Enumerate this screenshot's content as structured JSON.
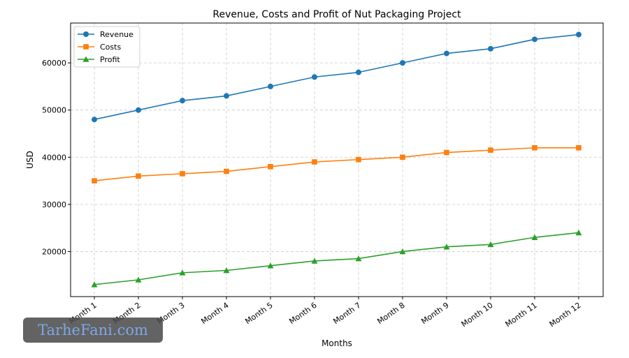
{
  "watermark": "TarheFani.com",
  "chart_data": {
    "type": "line",
    "title": "Revenue, Costs and Profit of Nut Packaging Project",
    "xlabel": "Months",
    "ylabel": "USD",
    "categories": [
      "Month 1",
      "Month 2",
      "Month 3",
      "Month 4",
      "Month 5",
      "Month 6",
      "Month 7",
      "Month 8",
      "Month 9",
      "Month 10",
      "Month 11",
      "Month 12"
    ],
    "y_ticks": [
      20000,
      30000,
      40000,
      50000,
      60000
    ],
    "ylim": [
      10450,
      68450
    ],
    "grid": true,
    "legend_position": "top-left",
    "series": [
      {
        "name": "Revenue",
        "color": "#1f77b4",
        "marker": "circle",
        "values": [
          48000,
          50000,
          52000,
          53000,
          55000,
          57000,
          58000,
          60000,
          62000,
          63000,
          65000,
          66000
        ]
      },
      {
        "name": "Costs",
        "color": "#ff7f0e",
        "marker": "square",
        "values": [
          35000,
          36000,
          36500,
          37000,
          38000,
          39000,
          39500,
          40000,
          41000,
          41500,
          42000,
          42000
        ]
      },
      {
        "name": "Profit",
        "color": "#2ca02c",
        "marker": "triangle",
        "values": [
          13000,
          14000,
          15500,
          16000,
          17000,
          18000,
          18500,
          20000,
          21000,
          21500,
          23000,
          24000
        ]
      }
    ]
  }
}
